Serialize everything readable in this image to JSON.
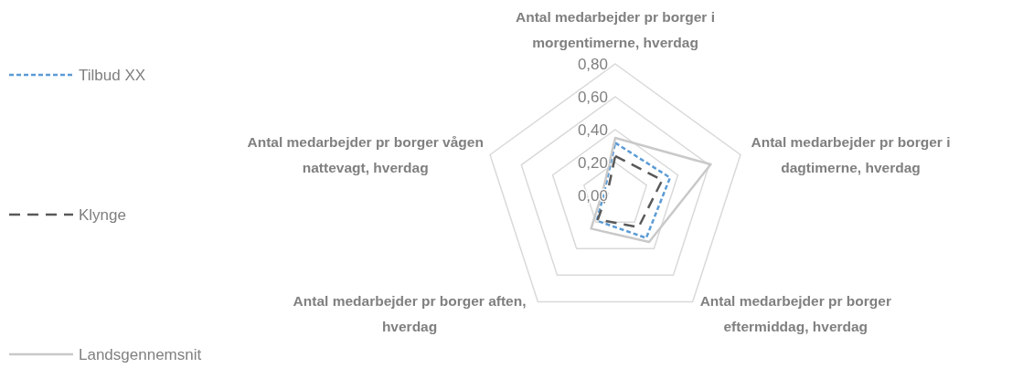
{
  "chart_data": {
    "type": "radar",
    "categories": [
      "Antal medarbejder pr borger i morgentimerne, hverdag",
      "Antal medarbejder pr borger i dagtimerne, hverdag",
      "Antal medarbejder pr borger eftermiddag, hverdag",
      "Antal medarbejder pr borger aften, hverdag",
      "Antal medarbejder pr borger vågen nattevagt, hverdag"
    ],
    "series": [
      {
        "name": "Tilbud XX",
        "color": "#5b9bd5",
        "line_style": "dotted",
        "values": [
          0.32,
          0.35,
          0.32,
          0.19,
          0.07
        ]
      },
      {
        "name": "Klynge",
        "color": "#595959",
        "line_style": "dashed",
        "values": [
          0.24,
          0.3,
          0.24,
          0.18,
          0.05
        ]
      },
      {
        "name": "Landsgennemsnit",
        "color": "#c9c9c9",
        "line_style": "solid",
        "values": [
          0.35,
          0.61,
          0.35,
          0.25,
          0.08
        ]
      }
    ],
    "ylim": [
      0,
      0.8
    ],
    "yticks": [
      {
        "value": 0,
        "label": "0,00"
      },
      {
        "value": 0.2,
        "label": "0,20"
      },
      {
        "value": 0.4,
        "label": "0,40"
      },
      {
        "value": 0.6,
        "label": "0,60"
      },
      {
        "value": 0.8,
        "label": "0,80"
      }
    ],
    "grid": true,
    "legend": "left"
  }
}
